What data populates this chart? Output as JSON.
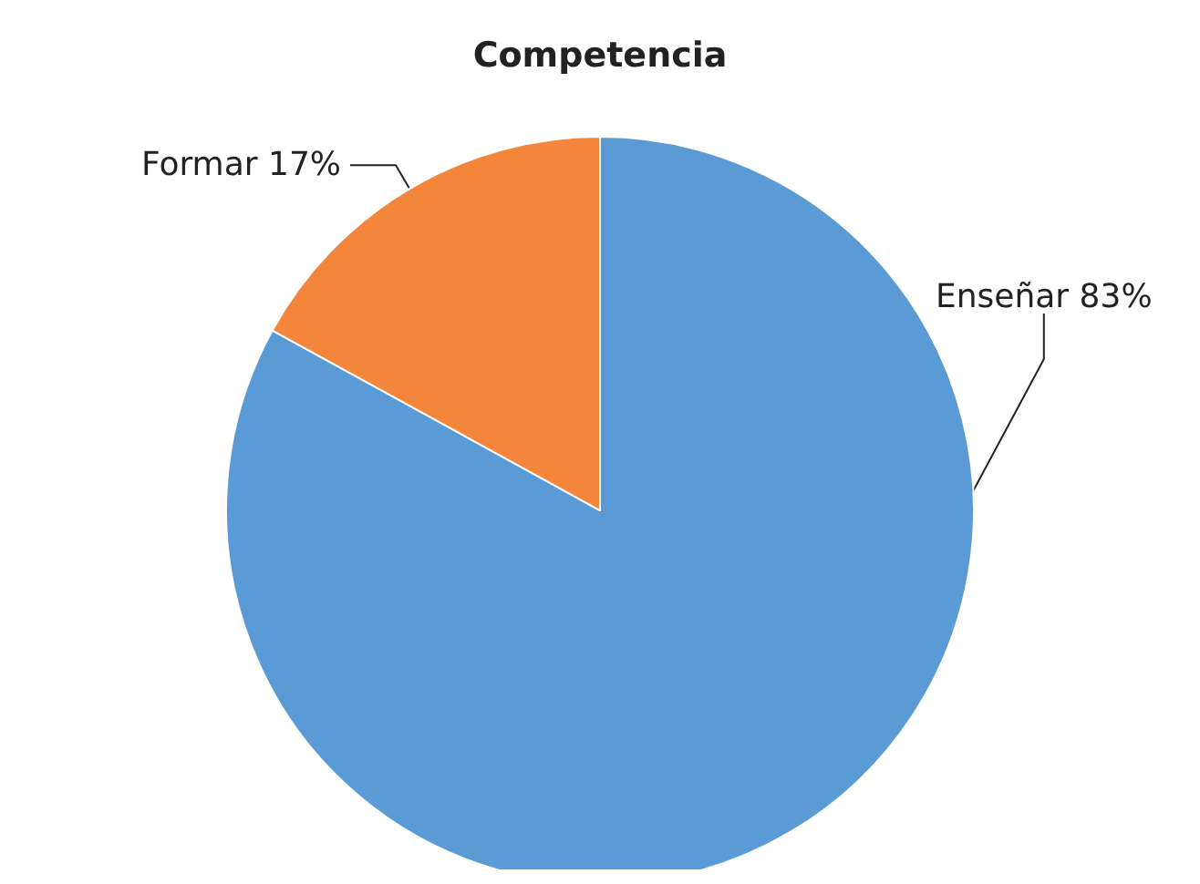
{
  "chart_data": {
    "type": "pie",
    "title": "Competencia",
    "categories": [
      "Enseñar",
      "Formar"
    ],
    "values": [
      83,
      17
    ],
    "colors": [
      "#5b9bd5",
      "#f4863b"
    ],
    "value_labels": [
      "83%",
      "17%"
    ],
    "legend": false
  }
}
